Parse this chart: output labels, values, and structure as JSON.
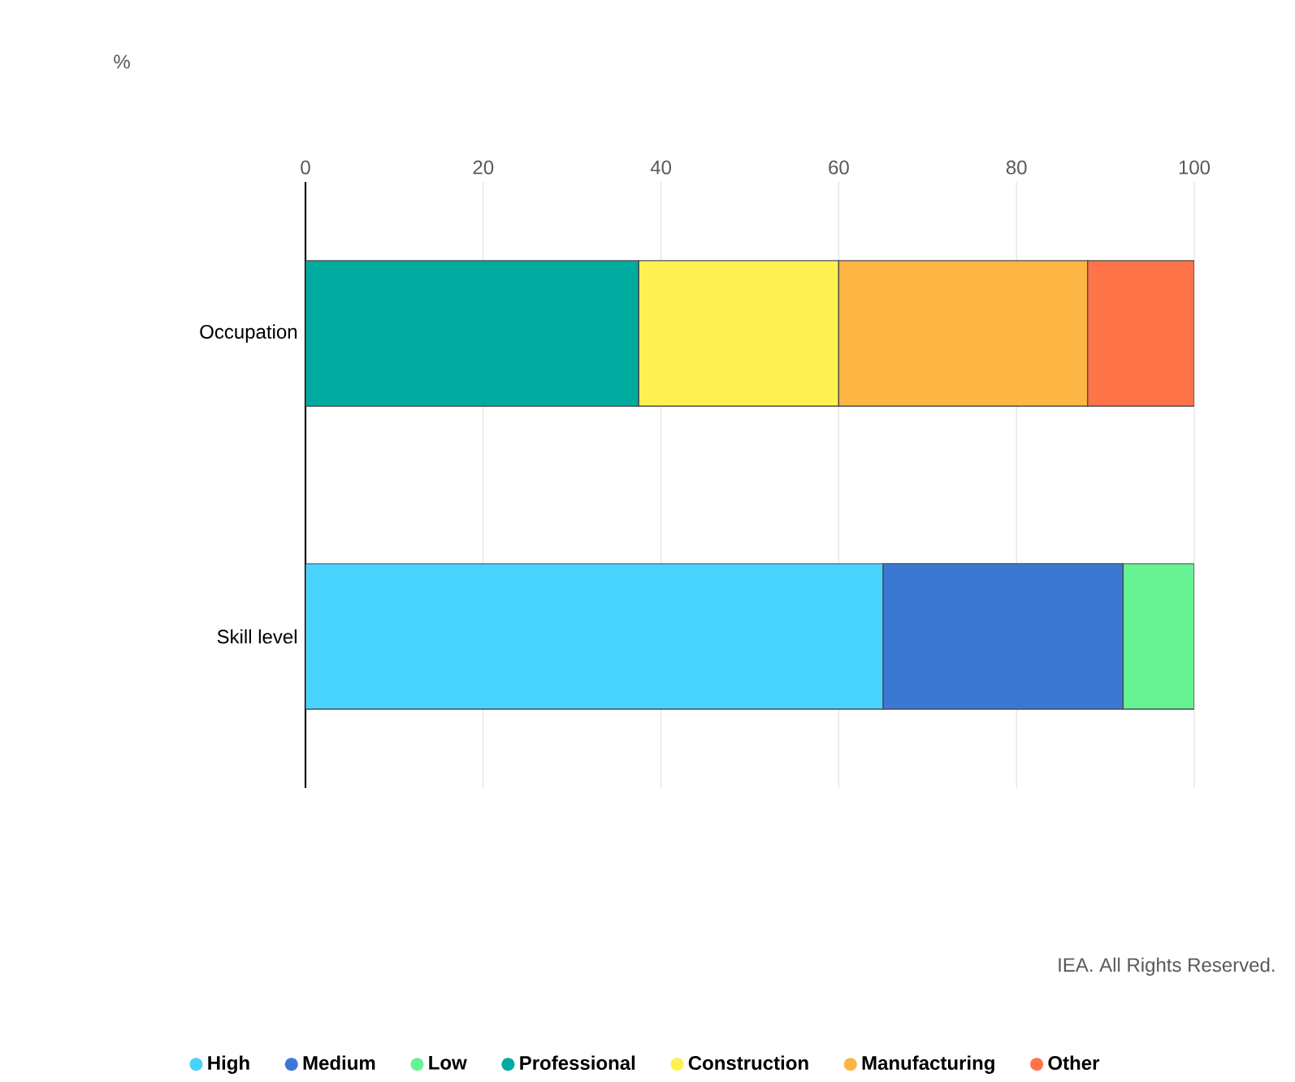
{
  "chart_data": {
    "type": "bar",
    "orientation": "horizontal",
    "stacked": true,
    "categories": [
      "Occupation",
      "Skill level"
    ],
    "series": [
      {
        "name": "High",
        "color": "#48d3ff",
        "values": [
          null,
          65
        ]
      },
      {
        "name": "Medium",
        "color": "#3b78d4",
        "values": [
          null,
          27
        ]
      },
      {
        "name": "Low",
        "color": "#67f293",
        "values": [
          null,
          8
        ]
      },
      {
        "name": "Professional",
        "color": "#00aa9e",
        "values": [
          37.5,
          null
        ]
      },
      {
        "name": "Construction",
        "color": "#fff051",
        "values": [
          22.5,
          null
        ]
      },
      {
        "name": "Manufacturing",
        "color": "#fdb544",
        "values": [
          28,
          null
        ]
      },
      {
        "name": "Other",
        "color": "#ff7349",
        "values": [
          12,
          null
        ]
      }
    ],
    "xlim": [
      0,
      100
    ],
    "xticks": [
      0,
      20,
      40,
      60,
      80,
      100
    ],
    "grid": "x",
    "legend": "bottom",
    "annotations": [
      "%",
      "IEA. All Rights Reserved."
    ]
  }
}
